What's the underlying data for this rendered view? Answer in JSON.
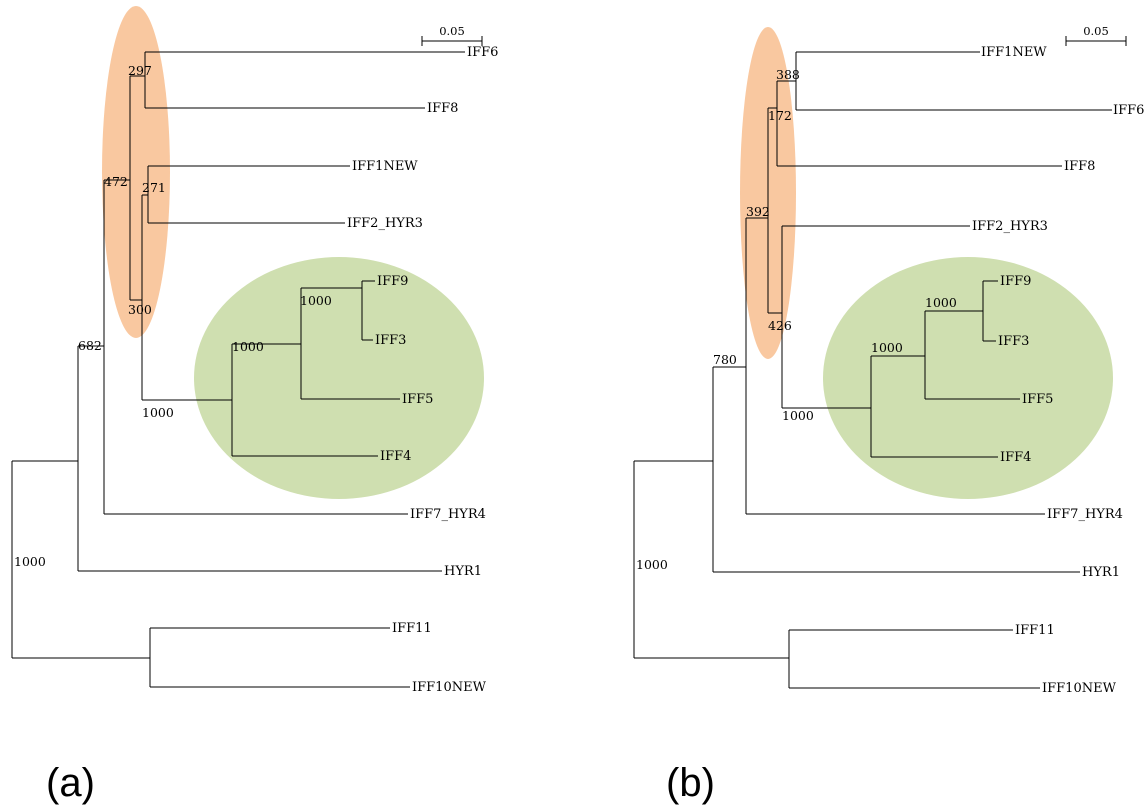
{
  "colors": {
    "clade_a_highlight": "#f9c8a0",
    "clade_b_highlight": "#cfdfb0",
    "branch": "#000000"
  },
  "panels": [
    {
      "label": "(a)",
      "scale_label": "0.05",
      "leaves": [
        "IFF6",
        "IFF8",
        "IFF1NEW",
        "IFF2_HYR3",
        "IFF9",
        "IFF3",
        "IFF5",
        "IFF4",
        "IFF7_HYR4",
        "HYR1",
        "IFF11",
        "IFF10NEW"
      ],
      "bootstrap": [
        "297",
        "472",
        "271",
        "300",
        "1000",
        "1000",
        "1000",
        "682",
        "1000"
      ]
    },
    {
      "label": "(b)",
      "scale_label": "0.05",
      "leaves": [
        "IFF1NEW",
        "IFF6",
        "IFF8",
        "IFF2_HYR3",
        "IFF9",
        "IFF3",
        "IFF5",
        "IFF4",
        "IFF7_HYR4",
        "HYR1",
        "IFF11",
        "IFF10NEW"
      ],
      "bootstrap": [
        "388",
        "172",
        "392",
        "1000",
        "1000",
        "426",
        "1000",
        "780",
        "1000"
      ]
    }
  ]
}
